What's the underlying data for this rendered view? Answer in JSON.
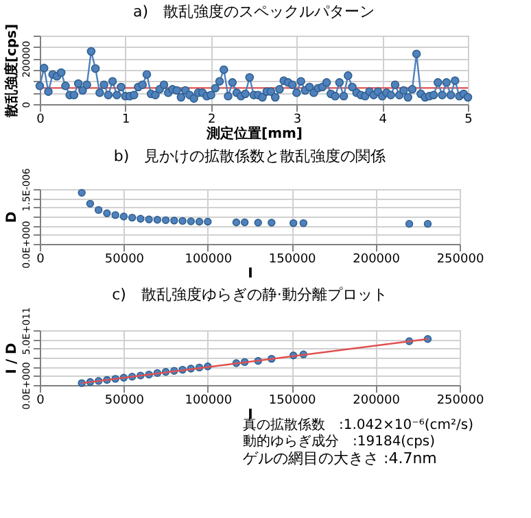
{
  "chart_data": [
    {
      "type": "line",
      "title": "a)　散乱強度のスペックルパターン",
      "xlabel": "測定位置[mm]",
      "ylabel": "散乱強度[cps]",
      "marker": "circle",
      "grid": true,
      "xlim": [
        0,
        5
      ],
      "xticks": [
        0,
        1,
        2,
        3,
        4,
        5
      ],
      "ylim": [
        0,
        300000
      ],
      "yticks": [
        0,
        {
          "value": 50000,
          "label": null
        },
        {
          "value": 100000,
          "label": null
        },
        {
          "value": 150000,
          "label": null
        },
        200000,
        {
          "value": 250000,
          "label": null
        },
        {
          "value": 300000,
          "label": null
        }
      ],
      "x": [
        0,
        0.05,
        0.1,
        0.15,
        0.2,
        0.25,
        0.3,
        0.35,
        0.4,
        0.45,
        0.5,
        0.55,
        0.6,
        0.65,
        0.7,
        0.75,
        0.8,
        0.85,
        0.9,
        0.95,
        1,
        1.05,
        1.1,
        1.15,
        1.2,
        1.25,
        1.3,
        1.35,
        1.4,
        1.45,
        1.5,
        1.55,
        1.6,
        1.65,
        1.7,
        1.75,
        1.8,
        1.85,
        1.9,
        1.95,
        2,
        2.05,
        2.1,
        2.15,
        2.2,
        2.25,
        2.3,
        2.35,
        2.4,
        2.45,
        2.5,
        2.55,
        2.6,
        2.65,
        2.7,
        2.75,
        2.8,
        2.85,
        2.9,
        2.95,
        3,
        3.05,
        3.1,
        3.15,
        3.2,
        3.25,
        3.3,
        3.35,
        3.4,
        3.45,
        3.5,
        3.55,
        3.6,
        3.65,
        3.7,
        3.75,
        3.8,
        3.85,
        3.9,
        3.95,
        4,
        4.05,
        4.1,
        4.15,
        4.2,
        4.25,
        4.3,
        4.35,
        4.4,
        4.45,
        4.5,
        4.55,
        4.6,
        4.65,
        4.7,
        4.75,
        4.8,
        4.85,
        4.9,
        4.95,
        5
      ],
      "series": [
        {
          "color": "#4f81bd",
          "values": [
            80000,
            158000,
            55000,
            130000,
            122000,
            138000,
            80000,
            40000,
            40000,
            90000,
            60000,
            85000,
            231000,
            156000,
            50000,
            85000,
            40000,
            100000,
            40000,
            75000,
            35000,
            35000,
            40000,
            75000,
            85000,
            130000,
            45000,
            40000,
            65000,
            85000,
            50000,
            65000,
            60000,
            30000,
            60000,
            40000,
            25000,
            50000,
            50000,
            35000,
            40000,
            70000,
            100000,
            151000,
            35000,
            95000,
            50000,
            35000,
            45000,
            117000,
            40000,
            40000,
            30000,
            55000,
            55000,
            30000,
            65000,
            103000,
            95000,
            85000,
            50000,
            100000,
            60000,
            75000,
            50000,
            70000,
            75000,
            95000,
            45000,
            35000,
            95000,
            35000,
            125000,
            75000,
            50000,
            40000,
            35000,
            55000,
            40000,
            55000,
            35000,
            50000,
            40000,
            85000,
            40000,
            60000,
            30000,
            65000,
            220000,
            45000,
            30000,
            35000,
            40000,
            95000,
            40000,
            95000,
            40000,
            103000,
            35000,
            45000,
            30000
          ]
        }
      ],
      "ref_lines": [
        {
          "axis": "y",
          "value": 71000,
          "color": "#e0504f"
        }
      ]
    },
    {
      "type": "scatter",
      "title": "b)　見かけの拡散係数と散乱強度の関係",
      "xlabel": "I",
      "ylabel": "D",
      "marker": "circle",
      "grid": true,
      "xlim": [
        0,
        250000
      ],
      "xticks": [
        0,
        50000,
        100000,
        150000,
        200000,
        250000
      ],
      "ylim": [
        0,
        1.5e-06
      ],
      "yticks": [
        {
          "value": 0,
          "label": "0.0E+000"
        },
        {
          "value": 2.5e-07,
          "label": null
        },
        {
          "value": 5e-07,
          "label": null
        },
        {
          "value": 7.5e-07,
          "label": null
        },
        {
          "value": 1e-06,
          "label": null
        },
        {
          "value": 1.25e-06,
          "label": null
        },
        {
          "value": 1.5e-06,
          "label": "1.5E-006"
        }
      ],
      "x": [
        25000,
        30000,
        35000,
        40000,
        45000,
        50000,
        55000,
        60000,
        65000,
        70000,
        75000,
        80000,
        85000,
        90000,
        95000,
        100000,
        117000,
        122000,
        130000,
        138000,
        151000,
        157000,
        220000,
        231000
      ],
      "series": [
        {
          "color": "#4f81bd",
          "values": [
            1.4e-06,
            1.1e-06,
            9.3e-07,
            8.4e-07,
            7.9e-07,
            7.5e-07,
            7.2e-07,
            6.9e-07,
            6.7e-07,
            6.6e-07,
            6.5e-07,
            6.4e-07,
            6.3e-07,
            6.2e-07,
            6.1e-07,
            6.1e-07,
            5.9e-07,
            5.9e-07,
            5.8e-07,
            5.8e-07,
            5.7e-07,
            5.7e-07,
            5.5e-07,
            5.5e-07
          ]
        }
      ]
    },
    {
      "type": "scatter",
      "title": "c)　散乱強度ゆらぎの静·動分離プロット",
      "xlabel": "I",
      "ylabel": "I / D",
      "marker": "circle",
      "grid": true,
      "xlim": [
        0,
        250000
      ],
      "xticks": [
        0,
        50000,
        100000,
        150000,
        200000,
        250000
      ],
      "ylim": [
        0,
        500000000000.0
      ],
      "yticks": [
        {
          "value": 0,
          "label": "0.0E+000"
        },
        {
          "value": 83333333333,
          "label": null
        },
        {
          "value": 166666666667,
          "label": null
        },
        {
          "value": 250000000000,
          "label": null
        },
        {
          "value": 333333333333,
          "label": null
        },
        {
          "value": 416666666667,
          "label": null
        },
        {
          "value": 500000000000.0,
          "label": "5.0E+011"
        }
      ],
      "x": [
        25000,
        30000,
        35000,
        40000,
        45000,
        50000,
        55000,
        60000,
        65000,
        70000,
        75000,
        80000,
        85000,
        90000,
        95000,
        100000,
        117000,
        122000,
        130000,
        138000,
        151000,
        157000,
        220000,
        231000
      ],
      "series": [
        {
          "color": "#4f81bd",
          "values": [
            18000000000.0,
            28000000000.0,
            38000000000.0,
            47000000000.0,
            57000000000.0,
            67000000000.0,
            77000000000.0,
            87000000000.0,
            96000000000.0,
            110000000000.0,
            120000000000.0,
            130000000000.0,
            140000000000.0,
            150000000000.0,
            160000000000.0,
            170000000000.0,
            200000000000.0,
            210000000000.0,
            220000000000.0,
            240000000000.0,
            270000000000.0,
            280000000000.0,
            400000000000.0,
            420000000000.0
          ]
        },
        {
          "type": "line",
          "marker": "none",
          "color": "#e0504f",
          "x": [
            25000,
            231000
          ],
          "values": [
            18000000000.0,
            420000000000.0
          ]
        }
      ],
      "annotations": [
        "真の拡散係数　:1.042×10⁻⁶(cm²/s)",
        "動的ゆらぎ成分　:19184(cps)",
        "ゲルの網目の大きさ :4.7nm"
      ]
    }
  ]
}
